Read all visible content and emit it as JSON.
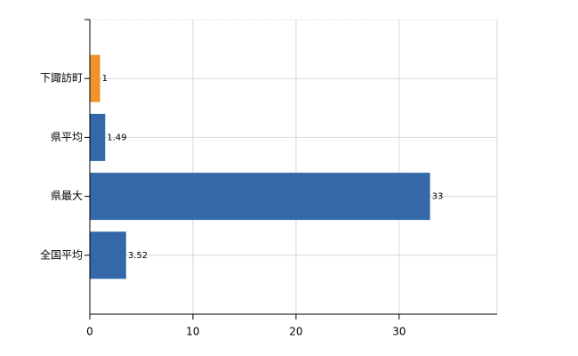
{
  "chart_data": {
    "type": "hbar",
    "categories": [
      "下諏訪町",
      "県平均",
      "県最大",
      "全国平均"
    ],
    "values": [
      1,
      1.49,
      33,
      3.52
    ],
    "colors": [
      "#f0932b",
      "#3568a8",
      "#3568a8",
      "#3568a8"
    ],
    "xlim": [
      0,
      39.5
    ],
    "xticks": [
      0,
      10,
      20,
      30
    ],
    "grid": true
  }
}
